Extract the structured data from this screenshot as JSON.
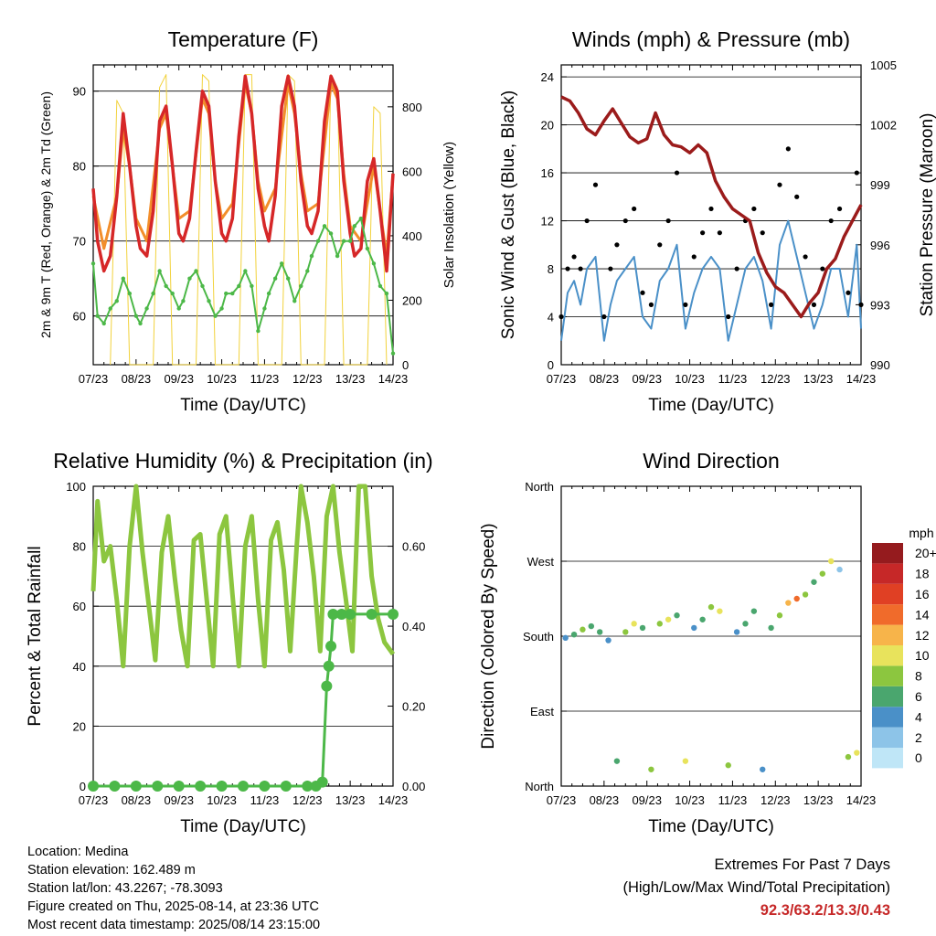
{
  "chart_data": [
    {
      "type": "line",
      "title": "Temperature (F)",
      "xlabel": "Time (Day/UTC)",
      "ylabel": "2m & 9m T (Red, Orange) & 2m Td (Green)",
      "ylabel_right": "Solar Insolation (Yellow)",
      "x_ticks": [
        "07/23",
        "08/23",
        "09/23",
        "10/23",
        "11/23",
        "12/23",
        "13/23",
        "14/23"
      ],
      "ylim": [
        53.5,
        93.5
      ],
      "y_ticks": [
        60,
        70,
        80,
        90
      ],
      "y2lim": [
        0,
        930
      ],
      "y2_ticks": [
        0,
        200,
        400,
        600,
        800
      ],
      "grid": true,
      "series": [
        {
          "name": "2m T",
          "color": "#d62728",
          "x": [
            0,
            0.1,
            0.25,
            0.4,
            0.55,
            0.7,
            0.85,
            1,
            1.1,
            1.25,
            1.4,
            1.55,
            1.7,
            1.85,
            2,
            2.1,
            2.25,
            2.4,
            2.55,
            2.7,
            2.85,
            3,
            3.1,
            3.25,
            3.4,
            3.55,
            3.7,
            3.85,
            4,
            4.1,
            4.25,
            4.4,
            4.55,
            4.7,
            4.85,
            5,
            5.1,
            5.25,
            5.4,
            5.55,
            5.7,
            5.85,
            6,
            6.1,
            6.25,
            6.4,
            6.55,
            6.7,
            6.85,
            7
          ],
          "values": [
            77,
            70,
            66,
            68,
            76,
            87,
            80,
            72,
            69,
            68,
            74,
            86,
            88,
            80,
            71,
            70,
            73,
            82,
            90,
            88,
            78,
            71,
            70,
            73,
            84,
            92,
            87,
            77,
            72,
            70,
            76,
            88,
            92,
            88,
            78,
            72,
            71,
            74,
            86,
            92,
            90,
            78,
            71,
            68,
            69,
            78,
            81,
            74,
            66,
            79
          ]
        },
        {
          "name": "9m T",
          "color": "#f28e2b",
          "x": [
            0,
            0.25,
            0.55,
            0.7,
            0.85,
            1,
            1.25,
            1.55,
            1.7,
            1.85,
            2,
            2.25,
            2.55,
            2.7,
            2.85,
            3,
            3.25,
            3.55,
            3.7,
            3.85,
            4,
            4.25,
            4.55,
            4.7,
            4.85,
            5,
            5.25,
            5.55,
            5.7,
            5.85,
            6,
            6.25,
            6.55,
            6.7,
            6.85,
            7
          ],
          "values": [
            76,
            69,
            76,
            85,
            80,
            73,
            70,
            85,
            87,
            80,
            73,
            74,
            89,
            87,
            78,
            73,
            75,
            91,
            87,
            78,
            74,
            77,
            91,
            87,
            79,
            74,
            75,
            91,
            89,
            79,
            72,
            70,
            80,
            74,
            68,
            79
          ]
        },
        {
          "name": "2m Td",
          "color": "#4cb848",
          "x": [
            0,
            0.1,
            0.25,
            0.4,
            0.55,
            0.7,
            0.85,
            1,
            1.1,
            1.25,
            1.4,
            1.55,
            1.7,
            1.85,
            2,
            2.1,
            2.25,
            2.4,
            2.55,
            2.7,
            2.85,
            3,
            3.1,
            3.25,
            3.4,
            3.55,
            3.7,
            3.85,
            4,
            4.1,
            4.25,
            4.4,
            4.55,
            4.7,
            4.85,
            5,
            5.1,
            5.25,
            5.4,
            5.55,
            5.7,
            5.85,
            6,
            6.1,
            6.25,
            6.4,
            6.55,
            6.7,
            6.85,
            7
          ],
          "values": [
            67,
            60,
            59,
            61,
            62,
            65,
            63,
            60,
            59,
            61,
            63,
            66,
            64,
            63,
            61,
            62,
            65,
            66,
            64,
            62,
            60,
            61,
            63,
            63,
            64,
            66,
            64,
            58,
            61,
            63,
            65,
            67,
            65,
            62,
            64,
            66,
            68,
            70,
            72,
            71,
            68,
            70,
            70,
            72,
            73,
            69,
            67,
            64,
            63,
            55
          ]
        },
        {
          "name": "Solar Insolation",
          "color": "#f2d23c",
          "axis": "right",
          "x": [
            0.4,
            0.55,
            0.7,
            0.85,
            1.4,
            1.55,
            1.7,
            1.85,
            2.4,
            2.55,
            2.7,
            2.85,
            3.4,
            3.55,
            3.7,
            3.85,
            4.4,
            4.55,
            4.7,
            4.85,
            5.4,
            5.55,
            5.7,
            5.85,
            6.4,
            6.55,
            6.7,
            6.85
          ],
          "values": [
            0,
            820,
            780,
            0,
            0,
            860,
            900,
            0,
            0,
            900,
            880,
            0,
            0,
            900,
            900,
            0,
            0,
            900,
            880,
            0,
            0,
            900,
            860,
            0,
            0,
            800,
            780,
            0
          ]
        }
      ]
    },
    {
      "type": "scatter",
      "title": "Winds (mph) & Pressure (mb)",
      "xlabel": "Time (Day/UTC)",
      "ylabel": "Sonic Wind & Gust (Blue, Black)",
      "ylabel_right": "Station Pressure (Maroon)",
      "x_ticks": [
        "07/23",
        "08/23",
        "09/23",
        "10/23",
        "11/23",
        "12/23",
        "13/23",
        "14/23"
      ],
      "ylim": [
        0,
        25
      ],
      "y_ticks": [
        0,
        4,
        8,
        12,
        16,
        20,
        24
      ],
      "y2lim": [
        990,
        1005
      ],
      "y2_ticks": [
        990,
        993,
        996,
        999,
        1002,
        1005
      ],
      "grid": true,
      "series": [
        {
          "name": "Sonic Wind",
          "color": "#4a90c8",
          "x": [
            0,
            0.15,
            0.3,
            0.45,
            0.6,
            0.8,
            1,
            1.15,
            1.3,
            1.5,
            1.7,
            1.9,
            2.1,
            2.3,
            2.5,
            2.7,
            2.9,
            3.1,
            3.3,
            3.5,
            3.7,
            3.9,
            4.1,
            4.3,
            4.5,
            4.7,
            4.9,
            5.1,
            5.3,
            5.5,
            5.7,
            5.9,
            6.1,
            6.3,
            6.5,
            6.7,
            6.9,
            7
          ],
          "values": [
            2,
            6,
            7,
            5,
            8,
            9,
            2,
            5,
            7,
            8,
            9,
            4,
            3,
            7,
            8,
            10,
            3,
            6,
            8,
            9,
            8,
            2,
            5,
            8,
            9,
            7,
            3,
            10,
            12,
            9,
            6,
            3,
            5,
            8,
            8,
            4,
            10,
            3
          ]
        },
        {
          "name": "Gust",
          "color": "#000000",
          "x": [
            0,
            0.15,
            0.3,
            0.45,
            0.6,
            0.8,
            1,
            1.15,
            1.3,
            1.5,
            1.7,
            1.9,
            2.1,
            2.3,
            2.5,
            2.7,
            2.9,
            3.1,
            3.3,
            3.5,
            3.7,
            3.9,
            4.1,
            4.3,
            4.5,
            4.7,
            4.9,
            5.1,
            5.3,
            5.5,
            5.7,
            5.9,
            6.1,
            6.3,
            6.5,
            6.7,
            6.9,
            7
          ],
          "values": [
            4,
            8,
            9,
            8,
            12,
            15,
            4,
            8,
            10,
            12,
            13,
            6,
            5,
            10,
            12,
            16,
            5,
            9,
            11,
            13,
            11,
            4,
            8,
            12,
            13,
            11,
            5,
            15,
            18,
            14,
            9,
            5,
            8,
            12,
            13,
            6,
            16,
            5
          ]
        },
        {
          "name": "Station Pressure",
          "color": "#9b1b1b",
          "axis": "right",
          "x": [
            0,
            0.2,
            0.4,
            0.6,
            0.8,
            1,
            1.2,
            1.4,
            1.6,
            1.8,
            2,
            2.2,
            2.4,
            2.6,
            2.8,
            3,
            3.2,
            3.4,
            3.6,
            3.8,
            4,
            4.2,
            4.4,
            4.6,
            4.8,
            5,
            5.2,
            5.4,
            5.6,
            5.8,
            6,
            6.2,
            6.4,
            6.6,
            6.8,
            7
          ],
          "values": [
            1003.4,
            1003.2,
            1002.6,
            1001.8,
            1001.5,
            1002.2,
            1002.8,
            1002.1,
            1001.4,
            1001.1,
            1001.3,
            1002.6,
            1001.5,
            1001.0,
            1000.9,
            1000.6,
            1001.0,
            1000.6,
            999.2,
            998.4,
            997.8,
            997.5,
            997.2,
            995.6,
            994.6,
            993.9,
            993.6,
            993.0,
            992.4,
            993.1,
            993.6,
            994.8,
            995.3,
            996.4,
            997.2,
            998.0
          ]
        }
      ]
    },
    {
      "type": "line",
      "title": "Relative Humidity (%) & Precipitation (in)",
      "xlabel": "Time (Day/UTC)",
      "ylabel": "Percent & Total Rainfall",
      "x_ticks": [
        "07/23",
        "08/23",
        "09/23",
        "10/23",
        "11/23",
        "12/23",
        "13/23",
        "14/23"
      ],
      "ylim": [
        0,
        100
      ],
      "y_ticks": [
        0,
        20,
        40,
        60,
        80,
        100
      ],
      "y2lim": [
        0,
        0.75
      ],
      "y2_ticks": [
        "0.00",
        "0.20",
        "0.40",
        "0.60"
      ],
      "grid": true,
      "series": [
        {
          "name": "Relative Humidity",
          "color": "#8cc63f",
          "x": [
            0,
            0.1,
            0.25,
            0.4,
            0.55,
            0.7,
            0.85,
            1,
            1.15,
            1.3,
            1.45,
            1.6,
            1.75,
            1.9,
            2.05,
            2.2,
            2.35,
            2.5,
            2.65,
            2.8,
            2.95,
            3.1,
            3.25,
            3.4,
            3.55,
            3.7,
            3.85,
            4,
            4.15,
            4.3,
            4.45,
            4.6,
            4.75,
            4.85,
            5,
            5.15,
            5.3,
            5.45,
            5.6,
            5.75,
            5.9,
            6.05,
            6.2,
            6.35,
            6.5,
            6.65,
            6.8,
            6.95,
            7
          ],
          "values": [
            65,
            95,
            75,
            80,
            62,
            40,
            80,
            100,
            78,
            60,
            42,
            78,
            90,
            70,
            52,
            40,
            82,
            84,
            62,
            40,
            84,
            90,
            64,
            40,
            80,
            90,
            62,
            40,
            82,
            88,
            72,
            45,
            80,
            100,
            88,
            70,
            45,
            90,
            100,
            78,
            62,
            45,
            100,
            100,
            70,
            56,
            48,
            45,
            44
          ]
        },
        {
          "name": "Total Precipitation",
          "color": "#4cb848",
          "axis": "right",
          "x": [
            0,
            0.5,
            1,
            1.5,
            2,
            2.5,
            3,
            3.5,
            4,
            4.5,
            5,
            5.2,
            5.35,
            5.45,
            5.5,
            5.55,
            5.6,
            5.8,
            6,
            6.5,
            7
          ],
          "values": [
            0,
            0,
            0,
            0,
            0,
            0,
            0,
            0,
            0,
            0,
            0,
            0,
            0.01,
            0.25,
            0.3,
            0.35,
            0.43,
            0.43,
            0.43,
            0.43,
            0.43
          ]
        }
      ]
    },
    {
      "type": "scatter",
      "title": "Wind Direction",
      "xlabel": "Time (Day/UTC)",
      "ylabel": "Direction (Colored By Speed)",
      "x_ticks": [
        "07/23",
        "08/23",
        "09/23",
        "10/23",
        "11/23",
        "12/23",
        "13/23",
        "14/23"
      ],
      "y_ticks": [
        "North",
        "East",
        "South",
        "West",
        "North"
      ],
      "ylim": [
        0,
        360
      ],
      "grid": true,
      "colorbar_title": "mph",
      "colorbar": [
        {
          "label": "0",
          "color": "#bfe6f7"
        },
        {
          "label": "2",
          "color": "#8dc4e8"
        },
        {
          "label": "4",
          "color": "#4a90c8"
        },
        {
          "label": "6",
          "color": "#4aa66e"
        },
        {
          "label": "8",
          "color": "#8cc63f"
        },
        {
          "label": "10",
          "color": "#e8e35c"
        },
        {
          "label": "12",
          "color": "#f7b44a"
        },
        {
          "label": "14",
          "color": "#f06b2b"
        },
        {
          "label": "16",
          "color": "#e04024"
        },
        {
          "label": "18",
          "color": "#c62828"
        },
        {
          "label": "20+",
          "color": "#951b1e"
        }
      ],
      "x": [
        0.1,
        0.3,
        0.5,
        0.7,
        0.9,
        1.1,
        1.3,
        1.5,
        1.7,
        1.9,
        2.1,
        2.3,
        2.5,
        2.7,
        2.9,
        3.1,
        3.3,
        3.5,
        3.7,
        3.9,
        4.1,
        4.3,
        4.5,
        4.7,
        4.9,
        5.1,
        5.3,
        5.5,
        5.7,
        5.9,
        6.1,
        6.3,
        6.5,
        6.7,
        6.9
      ],
      "values": [
        178,
        182,
        188,
        192,
        185,
        175,
        30,
        185,
        195,
        190,
        20,
        195,
        200,
        205,
        30,
        190,
        200,
        215,
        210,
        25,
        185,
        195,
        210,
        20,
        190,
        205,
        220,
        225,
        230,
        245,
        255,
        270,
        260,
        35,
        40
      ],
      "speeds": [
        4,
        6,
        8,
        6,
        5,
        3,
        6,
        8,
        10,
        6,
        7,
        8,
        9,
        6,
        9,
        4,
        6,
        8,
        10,
        8,
        4,
        6,
        5,
        4,
        6,
        8,
        12,
        14,
        8,
        6,
        8,
        10,
        2,
        8,
        10
      ]
    }
  ],
  "info": {
    "location": "Location: Medina",
    "elevation": "Station elevation: 162.489 m",
    "latlon": "Station lat/lon: 43.2267; -78.3093",
    "created": "Figure created on Thu, 2025-08-14, at 23:36 UTC",
    "recent": "Most recent data timestamp: 2025/08/14 23:15:00"
  },
  "extremes": {
    "title": "Extremes For Past 7 Days",
    "subtitle": "(High/Low/Max Wind/Total Precipitation)",
    "values": "92.3/63.2/13.3/0.43"
  }
}
